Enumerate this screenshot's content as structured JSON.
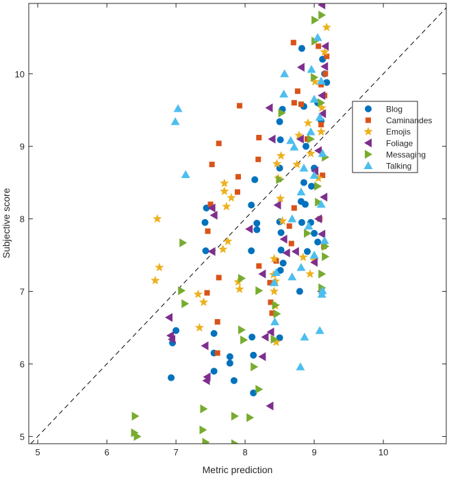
{
  "chart_data": {
    "type": "scatter",
    "title": "",
    "xlabel": "Metric prediction",
    "ylabel": "Subjective score",
    "xlim": [
      4.87,
      10.91
    ],
    "ylim": [
      4.9,
      10.97
    ],
    "xticks": [
      5,
      6,
      7,
      8,
      9,
      10
    ],
    "yticks": [
      5,
      6,
      7,
      8,
      9,
      10
    ],
    "grid": false,
    "box": true,
    "legend_placement": "right",
    "reference_line": {
      "type": "y=x",
      "style": "dashed",
      "color": "#000000"
    },
    "series": [
      {
        "name": "Blog",
        "marker": "circle",
        "color": "#0072BD",
        "points": [
          [
            7.0,
            6.46
          ],
          [
            6.95,
            6.29
          ],
          [
            6.93,
            5.81
          ],
          [
            7.44,
            8.15
          ],
          [
            7.42,
            7.95
          ],
          [
            7.43,
            7.56
          ],
          [
            7.55,
            6.42
          ],
          [
            7.55,
            6.15
          ],
          [
            7.55,
            5.9
          ],
          [
            7.78,
            6.1
          ],
          [
            7.78,
            6.01
          ],
          [
            7.84,
            5.77
          ],
          [
            8.09,
            8.19
          ],
          [
            8.09,
            7.56
          ],
          [
            8.14,
            8.54
          ],
          [
            8.17,
            7.94
          ],
          [
            8.17,
            7.85
          ],
          [
            8.1,
            6.37
          ],
          [
            8.12,
            6.12
          ],
          [
            8.12,
            5.6
          ],
          [
            8.5,
            8.7
          ],
          [
            8.51,
            9.09
          ],
          [
            8.5,
            9.34
          ],
          [
            8.54,
            9.51
          ],
          [
            8.5,
            7.96
          ],
          [
            8.52,
            7.81
          ],
          [
            8.52,
            7.57
          ],
          [
            8.55,
            7.39
          ],
          [
            8.51,
            7.29
          ],
          [
            8.5,
            6.36
          ],
          [
            8.82,
            10.35
          ],
          [
            8.81,
            8.24
          ],
          [
            8.79,
            7.0
          ],
          [
            8.96,
            8.45
          ],
          [
            9.15,
            10.0
          ],
          [
            9.12,
            10.2
          ],
          [
            9.18,
            9.88
          ],
          [
            9.05,
            9.6
          ],
          [
            9.1,
            9.35
          ],
          [
            8.85,
            9.55
          ],
          [
            8.88,
            9.0
          ],
          [
            9.0,
            8.7
          ],
          [
            8.85,
            8.5
          ],
          [
            8.87,
            8.2
          ],
          [
            8.95,
            7.95
          ],
          [
            9.0,
            7.8
          ],
          [
            8.9,
            7.55
          ],
          [
            9.05,
            7.68
          ],
          [
            8.82,
            7.95
          ]
        ]
      },
      {
        "name": "Caminandes",
        "marker": "square",
        "color": "#D95319",
        "points": [
          [
            7.5,
            8.2
          ],
          [
            7.46,
            7.83
          ],
          [
            7.45,
            6.98
          ],
          [
            7.52,
            8.75
          ],
          [
            7.62,
            9.04
          ],
          [
            7.62,
            7.19
          ],
          [
            7.6,
            6.58
          ],
          [
            7.6,
            6.15
          ],
          [
            7.92,
            9.56
          ],
          [
            7.9,
            8.58
          ],
          [
            7.89,
            8.37
          ],
          [
            8.2,
            9.12
          ],
          [
            8.19,
            8.82
          ],
          [
            8.2,
            7.35
          ],
          [
            8.36,
            7.12
          ],
          [
            8.37,
            6.85
          ],
          [
            8.39,
            6.7
          ],
          [
            8.7,
            10.43
          ],
          [
            8.71,
            8.15
          ],
          [
            8.64,
            7.9
          ],
          [
            8.71,
            9.6
          ],
          [
            8.76,
            9.76
          ],
          [
            8.67,
            7.66
          ],
          [
            8.81,
            9.58
          ],
          [
            9.06,
            10.38
          ],
          [
            9.16,
            10.0
          ],
          [
            9.18,
            10.24
          ],
          [
            9.15,
            9.7
          ],
          [
            9.1,
            9.3
          ],
          [
            9.12,
            8.6
          ],
          [
            9.08,
            8.0
          ],
          [
            9.14,
            7.62
          ],
          [
            8.45,
            7.42
          ],
          [
            8.9,
            9.1
          ],
          [
            9.1,
            9.85
          ]
        ]
      },
      {
        "name": "Emojis",
        "marker": "star",
        "color": "#EDB120",
        "points": [
          [
            6.73,
            8.0
          ],
          [
            6.76,
            7.33
          ],
          [
            6.7,
            7.15
          ],
          [
            7.7,
            8.49
          ],
          [
            7.7,
            8.38
          ],
          [
            7.8,
            8.29
          ],
          [
            7.73,
            8.17
          ],
          [
            7.75,
            7.69
          ],
          [
            7.68,
            7.58
          ],
          [
            7.32,
            6.96
          ],
          [
            7.4,
            6.85
          ],
          [
            7.34,
            6.5
          ],
          [
            7.9,
            7.13
          ],
          [
            7.92,
            7.03
          ],
          [
            8.46,
            8.76
          ],
          [
            8.48,
            8.56
          ],
          [
            8.52,
            8.87
          ],
          [
            8.54,
            7.97
          ],
          [
            8.42,
            7.45
          ],
          [
            8.41,
            7.23
          ],
          [
            8.44,
            7.14
          ],
          [
            8.42,
            7.0
          ],
          [
            8.44,
            6.8
          ],
          [
            8.51,
            8.28
          ],
          [
            8.78,
            9.15
          ],
          [
            8.75,
            8.75
          ],
          [
            8.84,
            7.47
          ],
          [
            8.94,
            7.24
          ],
          [
            9.0,
            7.43
          ],
          [
            9.18,
            10.64
          ],
          [
            9.11,
            9.53
          ],
          [
            8.91,
            9.32
          ],
          [
            9.01,
            9.89
          ],
          [
            9.06,
            8.56
          ],
          [
            8.95,
            8.9
          ],
          [
            9.1,
            9.2
          ],
          [
            8.45,
            6.3
          ],
          [
            9.15,
            10.3
          ]
        ]
      },
      {
        "name": "Foliage",
        "marker": "triangle-left",
        "color": "#7E2F8E",
        "points": [
          [
            6.9,
            6.64
          ],
          [
            6.92,
            6.39
          ],
          [
            6.94,
            6.34
          ],
          [
            7.52,
            8.15
          ],
          [
            7.55,
            8.05
          ],
          [
            7.52,
            7.55
          ],
          [
            7.42,
            6.25
          ],
          [
            7.45,
            5.82
          ],
          [
            7.44,
            5.77
          ],
          [
            8.06,
            7.86
          ],
          [
            8.25,
            7.24
          ],
          [
            8.29,
            6.37
          ],
          [
            8.25,
            6.1
          ],
          [
            8.35,
            9.53
          ],
          [
            8.39,
            9.1
          ],
          [
            8.47,
            8.19
          ],
          [
            8.56,
            7.72
          ],
          [
            8.6,
            7.53
          ],
          [
            8.73,
            7.55
          ],
          [
            8.81,
            10.09
          ],
          [
            8.36,
            5.42
          ],
          [
            8.37,
            6.44
          ],
          [
            9.11,
            10.95
          ],
          [
            9.16,
            10.38
          ],
          [
            9.11,
            9.7
          ],
          [
            9.06,
            8.94
          ],
          [
            9.06,
            8.0
          ],
          [
            9.11,
            7.79
          ],
          [
            9.01,
            8.66
          ],
          [
            9.15,
            10.1
          ],
          [
            9.12,
            9.45
          ],
          [
            9.14,
            8.3
          ],
          [
            8.8,
            9.1
          ],
          [
            9.0,
            7.4
          ],
          [
            9.1,
            7.0
          ]
        ]
      },
      {
        "name": "Messaging",
        "marker": "triangle-right",
        "color": "#77AC30",
        "points": [
          [
            6.41,
            5.28
          ],
          [
            6.4,
            5.05
          ],
          [
            6.44,
            5.0
          ],
          [
            7.1,
            7.67
          ],
          [
            7.08,
            7.01
          ],
          [
            7.13,
            6.83
          ],
          [
            7.4,
            5.38
          ],
          [
            7.39,
            5.09
          ],
          [
            7.43,
            4.92
          ],
          [
            7.85,
            5.28
          ],
          [
            8.07,
            5.26
          ],
          [
            7.95,
            7.18
          ],
          [
            7.95,
            6.47
          ],
          [
            7.98,
            6.33
          ],
          [
            8.2,
            7.01
          ],
          [
            8.13,
            5.96
          ],
          [
            8.44,
            6.81
          ],
          [
            8.42,
            6.34
          ],
          [
            8.46,
            6.69
          ],
          [
            8.5,
            8.54
          ],
          [
            8.53,
            9.46
          ],
          [
            9.01,
            10.74
          ],
          [
            9.11,
            10.81
          ],
          [
            9.01,
            10.45
          ],
          [
            9.16,
            8.85
          ],
          [
            9.16,
            7.62
          ],
          [
            9.16,
            7.48
          ],
          [
            9.11,
            7.24
          ],
          [
            9.11,
            7.05
          ],
          [
            9.06,
            8.23
          ],
          [
            9.0,
            9.95
          ],
          [
            9.1,
            9.6
          ],
          [
            8.95,
            9.1
          ],
          [
            9.05,
            8.45
          ],
          [
            8.9,
            7.8
          ],
          [
            7.85,
            4.9
          ],
          [
            8.2,
            5.65
          ]
        ]
      },
      {
        "name": "Talking",
        "marker": "triangle-up",
        "color": "#4DBEEE",
        "points": [
          [
            7.03,
            9.52
          ],
          [
            6.99,
            9.34
          ],
          [
            7.14,
            8.61
          ],
          [
            8.57,
            10.0
          ],
          [
            8.56,
            9.72
          ],
          [
            8.66,
            9.08
          ],
          [
            8.68,
            8.0
          ],
          [
            8.45,
            7.26
          ],
          [
            8.42,
            7.12
          ],
          [
            8.43,
            6.58
          ],
          [
            8.68,
            7.2
          ],
          [
            8.8,
            5.96
          ],
          [
            8.86,
            6.37
          ],
          [
            9.08,
            6.46
          ],
          [
            9.11,
            6.96
          ],
          [
            9.12,
            7.01
          ],
          [
            8.81,
            7.33
          ],
          [
            8.81,
            8.37
          ],
          [
            8.71,
            8.99
          ],
          [
            8.96,
            10.06
          ],
          [
            9.05,
            10.5
          ],
          [
            9.1,
            9.9
          ],
          [
            9.0,
            9.65
          ],
          [
            9.08,
            9.4
          ],
          [
            8.95,
            9.2
          ],
          [
            9.12,
            8.9
          ],
          [
            9.0,
            8.6
          ],
          [
            9.1,
            8.2
          ],
          [
            8.92,
            7.9
          ],
          [
            9.15,
            7.7
          ],
          [
            9.0,
            7.5
          ],
          [
            8.85,
            8.7
          ]
        ]
      }
    ]
  }
}
